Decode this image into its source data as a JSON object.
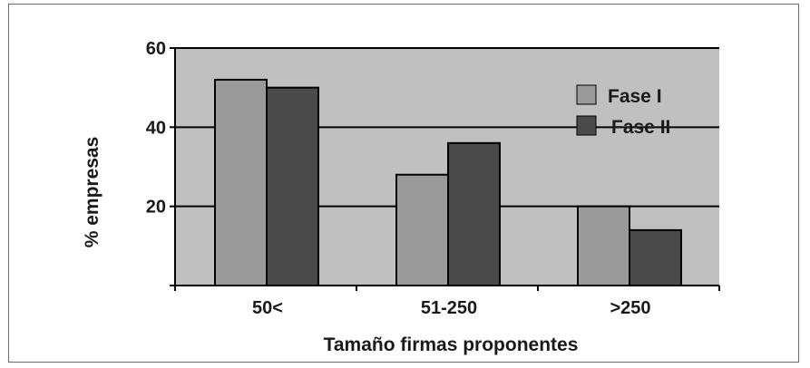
{
  "chart_data": {
    "type": "bar",
    "title": "",
    "xlabel": "Tamaño firmas proponentes",
    "ylabel": "% empresas",
    "categories": [
      "50<",
      "51-250",
      ">250"
    ],
    "series": [
      {
        "name": "Fase I",
        "values": [
          52,
          28,
          20
        ]
      },
      {
        "name": "Fase II",
        "values": [
          50,
          36,
          14
        ]
      }
    ],
    "ylim": [
      0,
      60
    ],
    "yticks": [
      "60",
      "40",
      "20"
    ],
    "grid": true,
    "legend": "top-right",
    "colors": {
      "plot_background": "#c0c0c0",
      "series": [
        "#9a9a9a",
        "#4a4a4a"
      ],
      "grid": "#000000"
    }
  }
}
